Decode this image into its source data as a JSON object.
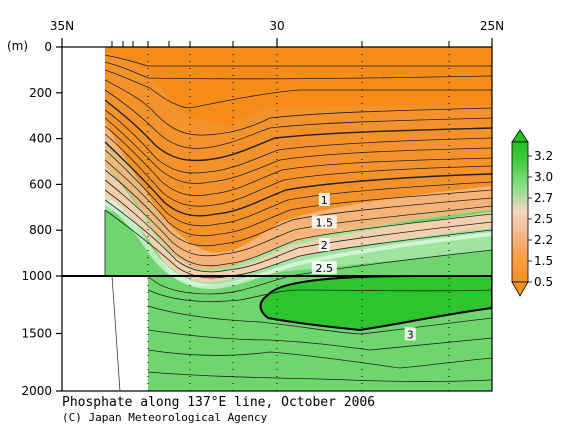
{
  "chart_data": {
    "type": "contour",
    "title": "Phosphate along 137°E line, October 2006",
    "credit": "(C) Japan Meteorological Agency",
    "depth_unit": "(m)",
    "x_ticks": [
      {
        "lat": 35,
        "label": "35N"
      },
      {
        "lat": 30,
        "label": "30"
      },
      {
        "lat": 25,
        "label": "25N"
      }
    ],
    "xlim": [
      35,
      25
    ],
    "ylim": [
      0,
      2000
    ],
    "y_ticks": [
      {
        "depth": 0,
        "label": "0"
      },
      {
        "depth": 200,
        "label": "200"
      },
      {
        "depth": 400,
        "label": "400"
      },
      {
        "depth": 600,
        "label": "600"
      },
      {
        "depth": 800,
        "label": "800"
      },
      {
        "depth": 1000,
        "label": "1000"
      },
      {
        "depth": 1500,
        "label": "1500"
      },
      {
        "depth": 2000,
        "label": "2000"
      }
    ],
    "colorbar": {
      "labels": [
        "3.2",
        "3.0",
        "2.7",
        "2.5",
        "2.2",
        "1.5",
        "0.5"
      ],
      "colors": [
        "#1fbf1f",
        "#5ad25a",
        "#a3e6a3",
        "#f7d6c0",
        "#f5b88a",
        "#f79e45",
        "#f39224"
      ]
    },
    "contour_labels": [
      {
        "text": "1",
        "lat": 28.9,
        "depth": 668
      },
      {
        "text": "1.5",
        "lat": 28.9,
        "depth": 766
      },
      {
        "text": "2",
        "lat": 28.9,
        "depth": 865
      },
      {
        "text": "2.5",
        "lat": 28.9,
        "depth": 966
      },
      {
        "text": "3",
        "lat": 26.9,
        "depth": 1508
      }
    ]
  }
}
